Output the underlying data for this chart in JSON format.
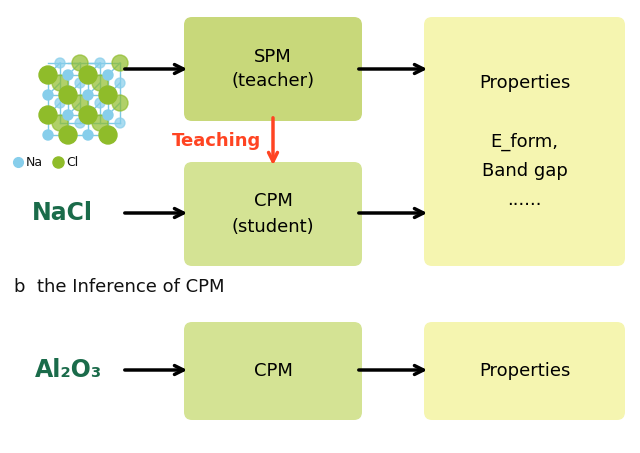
{
  "bg_color": "#ffffff",
  "green_box_color": "#c8d87a",
  "green_box_color2": "#d4e394",
  "yellow_box_color": "#f5f5b0",
  "text_color_black": "#111111",
  "text_color_red": "#ff4422",
  "nacl_color": "#1a6b4a",
  "al2o3_color": "#1a6b4a",
  "spm_label": "SPM\n(teacher)",
  "cpm_label_a": "CPM\n(student)",
  "cpm_label_b": "CPM",
  "properties_label_a": "Properties\n\nE_form,\nBand gap\n......",
  "properties_label_b": "Properties",
  "teaching_label": "Teaching",
  "na_label": "Na",
  "cl_label": "Cl",
  "nacl_label": "NaCl",
  "al2o3_label": "Al₂O₃",
  "title_b": "b  the Inference of CPM",
  "bond_color": "#7ec8e3",
  "cl_atom_color": "#8fbc2a",
  "na_atom_color": "#87ceeb",
  "arrow_lw": 2.5,
  "arrow_ms": 16
}
